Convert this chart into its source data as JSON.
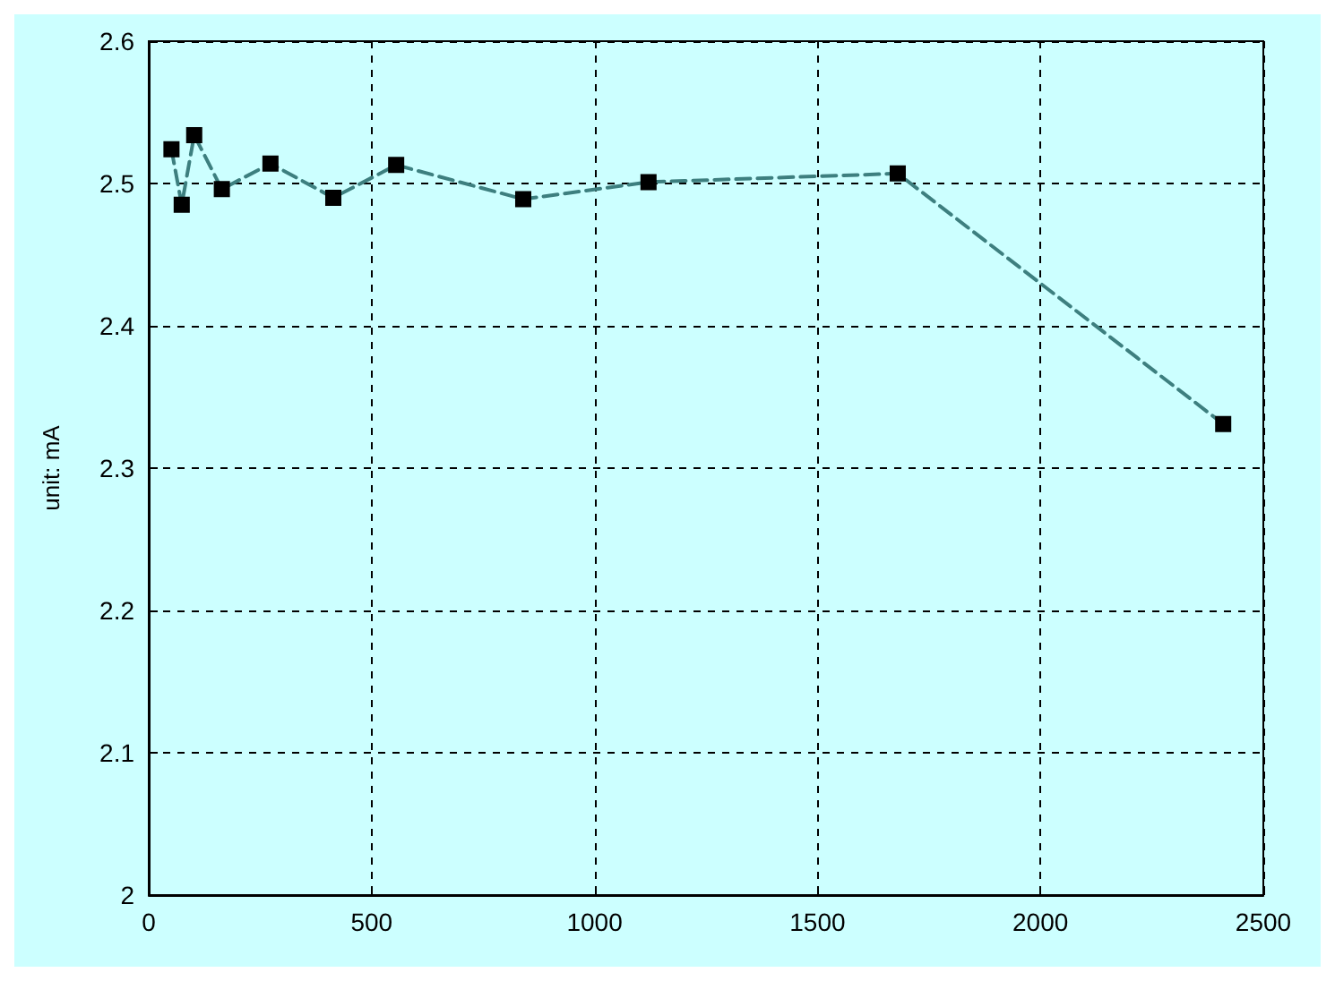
{
  "chart_data": {
    "type": "line",
    "ylabel": "unit: mA",
    "x": [
      51,
      74,
      102,
      164,
      273,
      414,
      555,
      840,
      1121,
      1680,
      2410
    ],
    "series": [
      {
        "color": "#3d7f7f",
        "values": [
          2.524,
          2.485,
          2.534,
          2.496,
          2.514,
          2.49,
          2.513,
          2.489,
          2.501,
          2.507,
          2.331
        ]
      }
    ],
    "xlim": [
      0,
      2500
    ],
    "xticks": [
      0,
      500,
      1000,
      1500,
      2000,
      2500
    ],
    "ylim": [
      2,
      2.6
    ],
    "yticks": [
      2,
      2.1,
      2.2,
      2.3,
      2.4,
      2.5,
      2.6
    ],
    "grid": true,
    "marker": "square",
    "line_style": "dashed"
  }
}
